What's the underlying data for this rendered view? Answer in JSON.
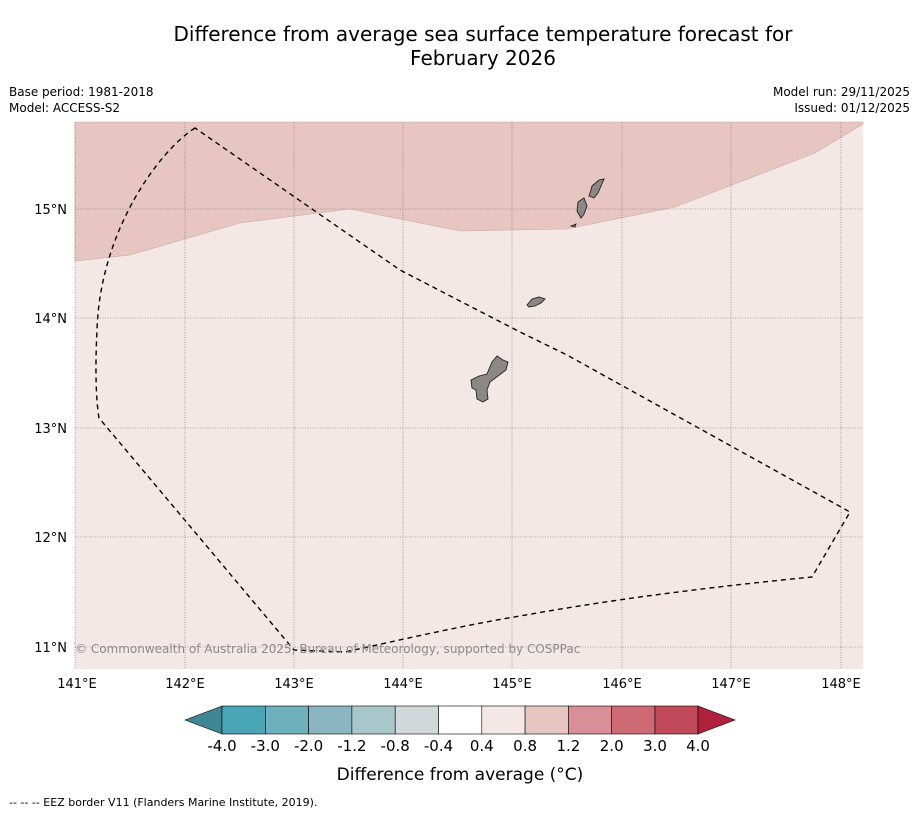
{
  "title": {
    "line1": "Difference from average sea surface temperature forecast for",
    "line2": "February 2026"
  },
  "meta": {
    "base_period": "Base period: 1981-2018",
    "model": "Model: ACCESS-S2",
    "model_run": "Model run: 29/11/2025",
    "issued": "Issued: 01/12/2025"
  },
  "map": {
    "copyright": "© Commonwealth of Australia 2025, Bureau of Meteorology, supported by COSPPac",
    "lon_labels": [
      "141°E",
      "142°E",
      "143°E",
      "144°E",
      "145°E",
      "146°E",
      "147°E",
      "148°E"
    ],
    "lat_labels": [
      "15°N",
      "14°N",
      "13°N",
      "12°N",
      "11°N"
    ],
    "lon_range": [
      141.0,
      148.2
    ],
    "lat_range": [
      10.8,
      15.8
    ],
    "anomaly_regions": [
      {
        "name": "north-region",
        "range": "0.8 to 1.2",
        "color": "#e7c6c2"
      },
      {
        "name": "south-region",
        "range": "0.4 to 0.8",
        "color": "#f4e8e7"
      }
    ],
    "islands": [
      "Guam",
      "Rota",
      "Tinian",
      "Saipan"
    ],
    "land_color": "#8c8684"
  },
  "colorbar": {
    "labels": [
      "-4.0",
      "-3.0",
      "-2.0",
      "-1.2",
      "-0.8",
      "-0.4",
      "0.4",
      "0.8",
      "1.2",
      "2.0",
      "3.0",
      "4.0"
    ],
    "colors": [
      "#4aa6b6",
      "#6fb0bd",
      "#8ab5c1",
      "#a9c8cc",
      "#d1d8da",
      "#ffffff",
      "#f4e8e7",
      "#e7c6c2",
      "#d88f97",
      "#cd6a74",
      "#c14a5a"
    ],
    "under_color": "#3e8692",
    "over_color": "#b0213d",
    "title": "Difference from average (°C)"
  },
  "legend": {
    "eez": "--  --  -- EEZ border V11 (Flanders Marine Institute, 2019)."
  }
}
